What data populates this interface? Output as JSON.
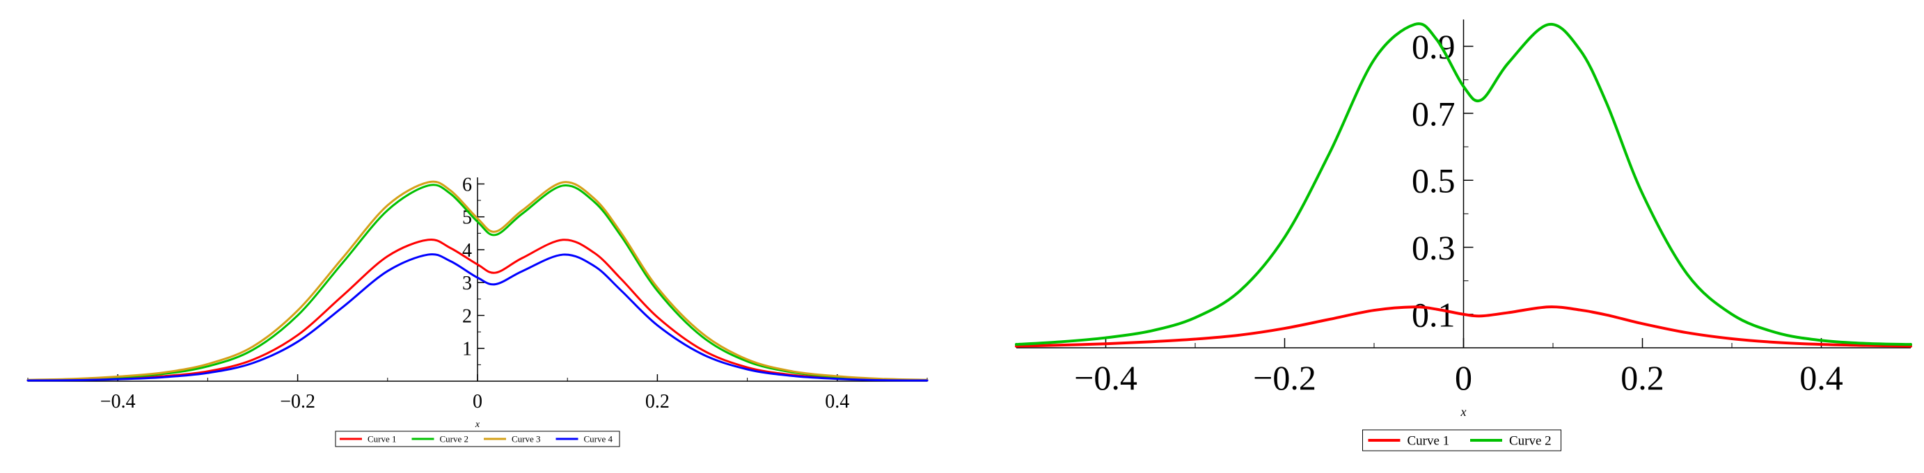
{
  "chart_data": [
    {
      "type": "line",
      "xlabel": "x",
      "ylabel": "",
      "xlim": [
        -0.5,
        0.5
      ],
      "ylim": [
        0,
        6.2
      ],
      "grid": false,
      "legend_position": "bottom-center",
      "x_ticks": [
        -0.4,
        -0.2,
        0,
        0.2,
        0.4
      ],
      "x_tick_labels": [
        "−0.4",
        "−0.2",
        "0",
        "0.2",
        "0.4"
      ],
      "y_ticks": [
        1,
        2,
        3,
        4,
        5,
        6
      ],
      "y_tick_labels": [
        "1",
        "2",
        "3",
        "4",
        "5",
        "6"
      ],
      "series": [
        {
          "name": "Curve 1",
          "color": "#ff0000",
          "x": [
            -0.5,
            -0.45,
            -0.4,
            -0.35,
            -0.3,
            -0.25,
            -0.2,
            -0.15,
            -0.1,
            -0.055,
            -0.03,
            0,
            0.02,
            0.05,
            0.095,
            0.13,
            0.16,
            0.2,
            0.25,
            0.3,
            0.35,
            0.4,
            0.45,
            0.5
          ],
          "y": [
            0.02,
            0.04,
            0.08,
            0.15,
            0.3,
            0.65,
            1.4,
            2.6,
            3.8,
            4.3,
            4.05,
            3.55,
            3.3,
            3.75,
            4.3,
            3.9,
            3.1,
            1.95,
            0.95,
            0.42,
            0.19,
            0.09,
            0.04,
            0.02
          ]
        },
        {
          "name": "Curve 2",
          "color": "#00c000",
          "x": [
            -0.5,
            -0.45,
            -0.4,
            -0.35,
            -0.3,
            -0.25,
            -0.2,
            -0.15,
            -0.1,
            -0.055,
            -0.03,
            0,
            0.02,
            0.05,
            0.095,
            0.13,
            0.16,
            0.2,
            0.25,
            0.3,
            0.35,
            0.4,
            0.45,
            0.5
          ],
          "y": [
            0.03,
            0.06,
            0.12,
            0.22,
            0.45,
            0.95,
            2.0,
            3.6,
            5.2,
            5.95,
            5.7,
            4.85,
            4.45,
            5.1,
            5.95,
            5.45,
            4.4,
            2.75,
            1.35,
            0.6,
            0.27,
            0.13,
            0.06,
            0.03
          ]
        },
        {
          "name": "Curve 3",
          "color": "#d4a017",
          "x": [
            -0.5,
            -0.45,
            -0.4,
            -0.35,
            -0.3,
            -0.25,
            -0.2,
            -0.15,
            -0.1,
            -0.055,
            -0.03,
            0,
            0.02,
            0.05,
            0.095,
            0.13,
            0.16,
            0.2,
            0.25,
            0.3,
            0.35,
            0.4,
            0.45,
            0.5
          ],
          "y": [
            0.04,
            0.07,
            0.14,
            0.26,
            0.52,
            1.05,
            2.15,
            3.75,
            5.35,
            6.05,
            5.8,
            4.95,
            4.55,
            5.2,
            6.05,
            5.55,
            4.5,
            2.85,
            1.45,
            0.66,
            0.3,
            0.15,
            0.07,
            0.04
          ]
        },
        {
          "name": "Curve 4",
          "color": "#0000ff",
          "x": [
            -0.5,
            -0.45,
            -0.4,
            -0.35,
            -0.3,
            -0.25,
            -0.2,
            -0.15,
            -0.1,
            -0.055,
            -0.03,
            0,
            0.02,
            0.05,
            0.095,
            0.13,
            0.16,
            0.2,
            0.25,
            0.3,
            0.35,
            0.4,
            0.45,
            0.5
          ],
          "y": [
            0.02,
            0.03,
            0.06,
            0.12,
            0.25,
            0.55,
            1.2,
            2.25,
            3.35,
            3.85,
            3.65,
            3.15,
            2.95,
            3.35,
            3.85,
            3.5,
            2.75,
            1.7,
            0.82,
            0.36,
            0.16,
            0.07,
            0.03,
            0.02
          ]
        }
      ]
    },
    {
      "type": "line",
      "xlabel": "x",
      "ylabel": "",
      "xlim": [
        -0.5,
        0.5
      ],
      "ylim": [
        0,
        0.98
      ],
      "grid": false,
      "legend_position": "bottom-center",
      "x_ticks": [
        -0.4,
        -0.2,
        0,
        0.2,
        0.4
      ],
      "x_tick_labels": [
        "−0.4",
        "−0.2",
        "0",
        "0.2",
        "0.4"
      ],
      "y_ticks": [
        0.1,
        0.3,
        0.5,
        0.7,
        0.9
      ],
      "y_tick_labels": [
        "0.1",
        "0.3",
        "0.5",
        "0.7",
        "0.9"
      ],
      "series": [
        {
          "name": "Curve 1",
          "color": "#ff0000",
          "x": [
            -0.5,
            -0.45,
            -0.4,
            -0.35,
            -0.3,
            -0.25,
            -0.2,
            -0.15,
            -0.1,
            -0.055,
            -0.03,
            0,
            0.02,
            0.05,
            0.095,
            0.13,
            0.16,
            0.2,
            0.25,
            0.3,
            0.35,
            0.4,
            0.45,
            0.5
          ],
          "y": [
            0.005,
            0.008,
            0.012,
            0.018,
            0.026,
            0.038,
            0.058,
            0.085,
            0.112,
            0.122,
            0.115,
            0.1,
            0.095,
            0.105,
            0.122,
            0.113,
            0.098,
            0.072,
            0.045,
            0.027,
            0.016,
            0.01,
            0.007,
            0.005
          ]
        },
        {
          "name": "Curve 2",
          "color": "#00c000",
          "x": [
            -0.5,
            -0.45,
            -0.4,
            -0.35,
            -0.3,
            -0.25,
            -0.2,
            -0.15,
            -0.1,
            -0.055,
            -0.03,
            0,
            0.02,
            0.05,
            0.095,
            0.13,
            0.16,
            0.2,
            0.25,
            0.3,
            0.35,
            0.4,
            0.45,
            0.5
          ],
          "y": [
            0.01,
            0.018,
            0.03,
            0.05,
            0.09,
            0.17,
            0.33,
            0.58,
            0.86,
            0.965,
            0.92,
            0.78,
            0.74,
            0.85,
            0.965,
            0.89,
            0.73,
            0.46,
            0.22,
            0.1,
            0.045,
            0.022,
            0.013,
            0.01
          ]
        }
      ]
    }
  ]
}
